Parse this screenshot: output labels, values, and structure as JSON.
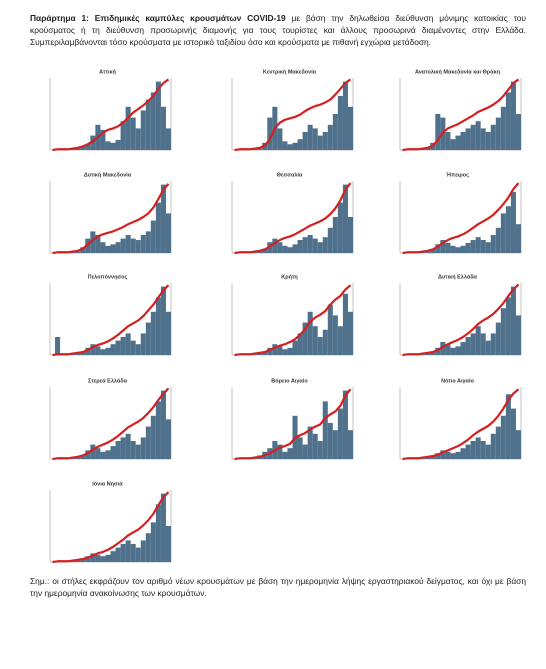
{
  "header": {
    "label": "Παράρτημα 1: Επιδημικές καμπύλες κρουσμάτων COVID-19",
    "text": "με βάση την δηλωθείσα διεύθυνση μόνιμης κατοικίας του κρούσματος ή τη διεύθυνση προσωρινής διαμονής για τους τουρίστες και άλλους προσωρινά διαμένοντες στην Ελλάδα. Συμπεριλαμβάνονται τόσο κρούσματα με ιστορικό ταξιδίου όσο και κρούσματα με πιθανή εγχώρια μετάδοση."
  },
  "chart_data": [
    {
      "type": "bar",
      "title": "Αττική",
      "ylim": [
        0,
        100
      ],
      "bar_color": "#4f718c",
      "line_color": "#d42020",
      "values": [
        0,
        0,
        1,
        0,
        1,
        2,
        5,
        8,
        20,
        35,
        28,
        12,
        10,
        14,
        40,
        60,
        45,
        30,
        55,
        70,
        80,
        95,
        60,
        30
      ],
      "cumulative": [
        0,
        1,
        1,
        1,
        2,
        3,
        5,
        8,
        12,
        18,
        24,
        28,
        30,
        33,
        38,
        45,
        52,
        57,
        62,
        68,
        75,
        85,
        93,
        98
      ]
    },
    {
      "type": "bar",
      "title": "Κεντρική Μακεδονία",
      "ylim": [
        0,
        100
      ],
      "bar_color": "#4f718c",
      "line_color": "#d42020",
      "values": [
        0,
        0,
        0,
        0,
        1,
        2,
        10,
        45,
        60,
        30,
        12,
        8,
        10,
        15,
        25,
        35,
        30,
        20,
        25,
        35,
        50,
        75,
        95,
        60
      ],
      "cumulative": [
        0,
        1,
        1,
        1,
        2,
        3,
        6,
        15,
        30,
        38,
        42,
        44,
        46,
        49,
        54,
        58,
        61,
        63,
        66,
        70,
        77,
        85,
        93,
        98
      ]
    },
    {
      "type": "bar",
      "title": "Ανατολική Μακεδονία και Θράκη",
      "ylim": [
        0,
        100
      ],
      "bar_color": "#4f718c",
      "line_color": "#d42020",
      "values": [
        0,
        0,
        0,
        1,
        1,
        3,
        10,
        50,
        45,
        25,
        15,
        20,
        25,
        30,
        35,
        40,
        30,
        25,
        35,
        45,
        60,
        80,
        95,
        50
      ],
      "cumulative": [
        0,
        1,
        1,
        1,
        2,
        3,
        6,
        14,
        24,
        30,
        33,
        36,
        40,
        44,
        48,
        53,
        56,
        59,
        63,
        68,
        75,
        84,
        93,
        98
      ]
    },
    {
      "type": "bar",
      "title": "Δυτική Μακεδονία",
      "ylim": [
        0,
        100
      ],
      "bar_color": "#4f718c",
      "line_color": "#d42020",
      "values": [
        0,
        0,
        0,
        0,
        1,
        2,
        8,
        20,
        30,
        25,
        15,
        10,
        12,
        15,
        20,
        25,
        20,
        18,
        25,
        30,
        45,
        70,
        95,
        55
      ],
      "cumulative": [
        0,
        1,
        1,
        1,
        2,
        3,
        6,
        12,
        18,
        23,
        26,
        28,
        30,
        33,
        36,
        40,
        43,
        46,
        50,
        55,
        63,
        75,
        88,
        96
      ]
    },
    {
      "type": "bar",
      "title": "Θεσσαλία",
      "ylim": [
        0,
        100
      ],
      "bar_color": "#4f718c",
      "line_color": "#d42020",
      "values": [
        0,
        0,
        0,
        0,
        1,
        2,
        6,
        15,
        20,
        15,
        10,
        8,
        12,
        18,
        22,
        25,
        20,
        15,
        22,
        35,
        50,
        70,
        95,
        50
      ],
      "cumulative": [
        0,
        1,
        1,
        1,
        2,
        3,
        5,
        9,
        14,
        18,
        21,
        23,
        26,
        30,
        34,
        38,
        41,
        44,
        48,
        54,
        62,
        73,
        88,
        97
      ]
    },
    {
      "type": "bar",
      "title": "Ήπειρος",
      "ylim": [
        0,
        100
      ],
      "bar_color": "#4f718c",
      "line_color": "#d42020",
      "values": [
        0,
        0,
        0,
        0,
        1,
        2,
        5,
        12,
        18,
        14,
        10,
        8,
        10,
        14,
        18,
        22,
        18,
        15,
        25,
        35,
        55,
        65,
        85,
        40
      ],
      "cumulative": [
        0,
        1,
        1,
        1,
        2,
        3,
        5,
        9,
        14,
        18,
        21,
        23,
        26,
        30,
        35,
        40,
        44,
        48,
        53,
        60,
        68,
        77,
        89,
        97
      ]
    },
    {
      "type": "bar",
      "title": "Πελοπόννησος",
      "ylim": [
        0,
        100
      ],
      "bar_color": "#4f718c",
      "line_color": "#d42020",
      "values": [
        0,
        25,
        0,
        0,
        1,
        2,
        4,
        10,
        15,
        12,
        8,
        10,
        15,
        20,
        25,
        30,
        20,
        15,
        30,
        45,
        60,
        80,
        95,
        60
      ],
      "cumulative": [
        0,
        1,
        1,
        1,
        2,
        3,
        4,
        7,
        11,
        14,
        16,
        19,
        23,
        28,
        34,
        40,
        44,
        48,
        54,
        62,
        70,
        80,
        90,
        97
      ]
    },
    {
      "type": "bar",
      "title": "Κρήτη",
      "ylim": [
        0,
        100
      ],
      "bar_color": "#4f718c",
      "line_color": "#d42020",
      "values": [
        0,
        0,
        0,
        0,
        1,
        2,
        5,
        10,
        15,
        12,
        8,
        10,
        20,
        30,
        45,
        60,
        40,
        25,
        35,
        70,
        55,
        40,
        85,
        60
      ],
      "cumulative": [
        0,
        1,
        1,
        1,
        2,
        3,
        4,
        7,
        10,
        13,
        15,
        18,
        22,
        28,
        36,
        46,
        52,
        56,
        61,
        70,
        77,
        82,
        91,
        97
      ]
    },
    {
      "type": "bar",
      "title": "Δυτική Ελλάδα",
      "ylim": [
        0,
        100
      ],
      "bar_color": "#4f718c",
      "line_color": "#d42020",
      "values": [
        0,
        0,
        0,
        0,
        1,
        2,
        4,
        10,
        18,
        15,
        10,
        12,
        18,
        25,
        30,
        40,
        30,
        20,
        30,
        45,
        65,
        80,
        95,
        55
      ],
      "cumulative": [
        0,
        1,
        1,
        1,
        2,
        3,
        4,
        7,
        11,
        15,
        18,
        21,
        25,
        30,
        36,
        43,
        48,
        52,
        57,
        64,
        72,
        82,
        91,
        98
      ]
    },
    {
      "type": "bar",
      "title": "Στερεά Ελλάδα",
      "ylim": [
        0,
        100
      ],
      "bar_color": "#4f718c",
      "line_color": "#d42020",
      "values": [
        0,
        0,
        0,
        0,
        1,
        2,
        5,
        12,
        20,
        15,
        10,
        12,
        18,
        25,
        30,
        35,
        25,
        20,
        30,
        45,
        60,
        80,
        95,
        55
      ],
      "cumulative": [
        0,
        1,
        1,
        1,
        2,
        3,
        5,
        8,
        13,
        17,
        20,
        23,
        27,
        32,
        38,
        44,
        48,
        52,
        57,
        64,
        72,
        82,
        91,
        98
      ]
    },
    {
      "type": "bar",
      "title": "Βόρειο Αιγαίο",
      "ylim": [
        0,
        100
      ],
      "bar_color": "#4f718c",
      "line_color": "#d42020",
      "values": [
        0,
        0,
        0,
        0,
        2,
        5,
        10,
        15,
        25,
        20,
        10,
        15,
        60,
        30,
        20,
        45,
        35,
        25,
        80,
        50,
        40,
        70,
        95,
        40
      ],
      "cumulative": [
        0,
        1,
        1,
        1,
        2,
        3,
        5,
        8,
        12,
        16,
        18,
        21,
        29,
        33,
        36,
        41,
        45,
        48,
        57,
        62,
        66,
        74,
        88,
        97
      ]
    },
    {
      "type": "bar",
      "title": "Νότιο Αιγαίο",
      "ylim": [
        0,
        100
      ],
      "bar_color": "#4f718c",
      "line_color": "#d42020",
      "values": [
        0,
        0,
        0,
        0,
        1,
        2,
        4,
        8,
        12,
        10,
        8,
        10,
        15,
        20,
        25,
        30,
        25,
        20,
        35,
        45,
        60,
        90,
        70,
        40
      ],
      "cumulative": [
        0,
        1,
        1,
        1,
        2,
        3,
        4,
        6,
        9,
        12,
        15,
        18,
        22,
        27,
        33,
        38,
        42,
        46,
        52,
        60,
        70,
        82,
        91,
        97
      ]
    },
    {
      "type": "bar",
      "title": "Ιόνια Νησιά",
      "ylim": [
        0,
        100
      ],
      "bar_color": "#4f718c",
      "line_color": "#d42020",
      "values": [
        0,
        0,
        0,
        0,
        1,
        2,
        4,
        8,
        12,
        10,
        8,
        10,
        15,
        20,
        25,
        30,
        25,
        20,
        30,
        40,
        55,
        80,
        95,
        50
      ],
      "cumulative": [
        0,
        1,
        1,
        1,
        2,
        3,
        4,
        6,
        9,
        12,
        14,
        17,
        21,
        26,
        31,
        37,
        41,
        45,
        51,
        58,
        67,
        79,
        90,
        97
      ]
    }
  ],
  "note": "Σημ.: οι στήλες εκφράζουν τον αριθμό νέων κρουσμάτων με βάση την ημερομηνία λήψης εργαστηριακού δείγματος, και όχι με βάση την ημερομηνία ανακοίνωσης των κρουσμάτων."
}
